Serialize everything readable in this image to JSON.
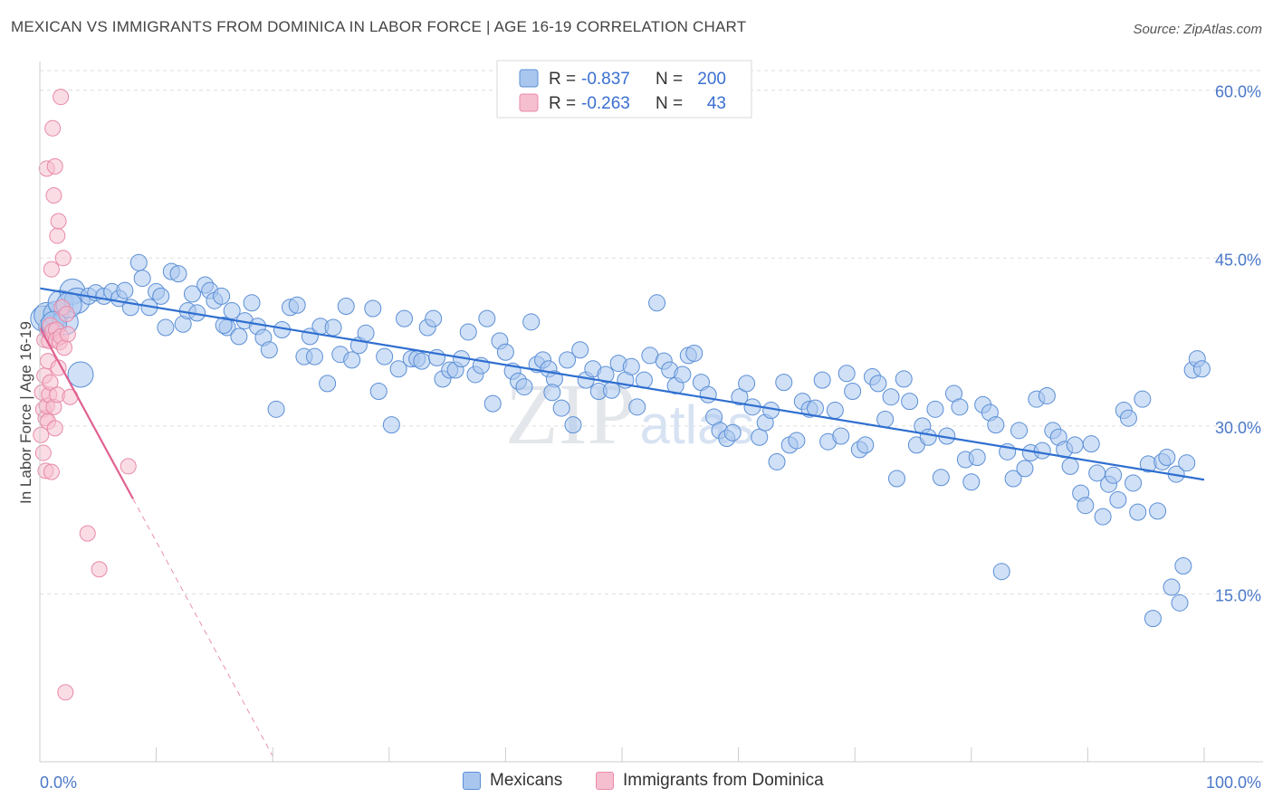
{
  "title": "MEXICAN VS IMMIGRANTS FROM DOMINICA IN LABOR FORCE | AGE 16-19 CORRELATION CHART",
  "source": "Source: ZipAtlas.com",
  "watermark": {
    "zip": "ZIP",
    "atlas": "atlas"
  },
  "colors": {
    "blue_fill": "#a9c6ee",
    "blue_stroke": "#5b8fd6",
    "blue_line": "#2f6fd0",
    "pink_fill": "#f6bfd0",
    "pink_stroke": "#e88aa8",
    "pink_line": "#e06090",
    "value_text": "#3a6fd0"
  },
  "legend": {
    "rows": [
      {
        "r_label": "R =",
        "r_value": "-0.837",
        "n_label": "N =",
        "n_value": "200"
      },
      {
        "r_label": "R =",
        "r_value": "-0.263",
        "n_label": "N =",
        "n_value": "43"
      }
    ]
  },
  "bottom_legend": {
    "series1": "Mexicans",
    "series2": "Immigrants from Dominica"
  },
  "chart_data": {
    "type": "scatter",
    "ylabel": "In Labor Force | Age 16-19",
    "xlim": [
      0,
      100
    ],
    "ylim": [
      0,
      62
    ],
    "x_tick_labels": [
      "0.0%",
      "100.0%"
    ],
    "y_ticks": [
      15,
      30,
      45,
      60
    ],
    "y_tick_labels": [
      "15.0%",
      "30.0%",
      "45.0%",
      "60.0%"
    ],
    "grid": true,
    "series": [
      {
        "name": "Mexicans",
        "trend": {
          "x": [
            0,
            100
          ],
          "y": [
            42.3,
            25.2
          ]
        },
        "points": [
          [
            0.3,
            39.6
          ],
          [
            0.6,
            39.9
          ],
          [
            1.0,
            38.8
          ],
          [
            1.4,
            40.0
          ],
          [
            1.8,
            41.0
          ],
          [
            2.2,
            39.3
          ],
          [
            2.8,
            42.0
          ],
          [
            3.2,
            41.2
          ],
          [
            3.5,
            34.6
          ],
          [
            4.2,
            41.6
          ],
          [
            4.8,
            41.9
          ],
          [
            5.5,
            41.6
          ],
          [
            6.2,
            42.0
          ],
          [
            6.8,
            41.4
          ],
          [
            7.3,
            42.1
          ],
          [
            7.8,
            40.6
          ],
          [
            8.5,
            44.6
          ],
          [
            8.8,
            43.2
          ],
          [
            9.4,
            40.6
          ],
          [
            10.0,
            42.0
          ],
          [
            10.4,
            41.6
          ],
          [
            10.8,
            38.8
          ],
          [
            11.3,
            43.8
          ],
          [
            11.9,
            43.6
          ],
          [
            12.3,
            39.1
          ],
          [
            12.7,
            40.3
          ],
          [
            13.1,
            41.8
          ],
          [
            13.5,
            40.1
          ],
          [
            14.2,
            42.6
          ],
          [
            14.6,
            42.1
          ],
          [
            15.0,
            41.2
          ],
          [
            15.6,
            41.6
          ],
          [
            16.1,
            38.8
          ],
          [
            16.5,
            40.3
          ],
          [
            17.1,
            38.0
          ],
          [
            17.6,
            39.4
          ],
          [
            18.2,
            41.0
          ],
          [
            18.7,
            38.9
          ],
          [
            19.2,
            37.9
          ],
          [
            19.7,
            36.8
          ],
          [
            20.3,
            31.5
          ],
          [
            20.8,
            38.6
          ],
          [
            21.5,
            40.6
          ],
          [
            22.1,
            40.8
          ],
          [
            22.7,
            36.2
          ],
          [
            23.2,
            38.0
          ],
          [
            23.6,
            36.2
          ],
          [
            24.1,
            38.9
          ],
          [
            24.7,
            33.8
          ],
          [
            25.2,
            38.8
          ],
          [
            25.8,
            36.4
          ],
          [
            26.3,
            40.7
          ],
          [
            26.8,
            35.9
          ],
          [
            27.4,
            37.2
          ],
          [
            28.0,
            38.3
          ],
          [
            28.6,
            40.5
          ],
          [
            29.1,
            33.1
          ],
          [
            29.6,
            36.2
          ],
          [
            30.2,
            30.1
          ],
          [
            30.8,
            35.1
          ],
          [
            31.3,
            39.6
          ],
          [
            31.9,
            36.0
          ],
          [
            32.4,
            36.0
          ],
          [
            32.8,
            35.8
          ],
          [
            33.3,
            38.8
          ],
          [
            33.8,
            39.6
          ],
          [
            34.1,
            36.1
          ],
          [
            34.6,
            34.2
          ],
          [
            35.2,
            35.0
          ],
          [
            35.7,
            35.0
          ],
          [
            36.2,
            36.0
          ],
          [
            36.8,
            38.4
          ],
          [
            37.4,
            34.6
          ],
          [
            37.9,
            35.4
          ],
          [
            38.4,
            39.6
          ],
          [
            38.9,
            32.0
          ],
          [
            39.5,
            37.6
          ],
          [
            40.0,
            36.6
          ],
          [
            40.6,
            34.9
          ],
          [
            41.1,
            34.0
          ],
          [
            41.6,
            33.5
          ],
          [
            42.2,
            39.3
          ],
          [
            42.7,
            35.5
          ],
          [
            43.2,
            35.9
          ],
          [
            43.7,
            35.1
          ],
          [
            44.2,
            34.2
          ],
          [
            44.8,
            31.6
          ],
          [
            45.3,
            35.9
          ],
          [
            45.8,
            30.1
          ],
          [
            46.4,
            36.8
          ],
          [
            46.9,
            34.1
          ],
          [
            47.5,
            35.1
          ],
          [
            48.0,
            33.1
          ],
          [
            48.6,
            34.6
          ],
          [
            49.1,
            33.2
          ],
          [
            49.7,
            35.6
          ],
          [
            50.3,
            34.1
          ],
          [
            50.8,
            35.3
          ],
          [
            51.3,
            31.7
          ],
          [
            51.9,
            34.1
          ],
          [
            52.4,
            36.3
          ],
          [
            53.0,
            41.0
          ],
          [
            53.6,
            35.8
          ],
          [
            54.1,
            35.0
          ],
          [
            54.6,
            33.6
          ],
          [
            55.2,
            34.6
          ],
          [
            55.7,
            36.3
          ],
          [
            56.2,
            36.5
          ],
          [
            56.8,
            33.9
          ],
          [
            57.4,
            32.8
          ],
          [
            57.9,
            30.8
          ],
          [
            58.4,
            29.6
          ],
          [
            59.0,
            28.9
          ],
          [
            59.5,
            29.4
          ],
          [
            60.1,
            32.6
          ],
          [
            60.7,
            33.8
          ],
          [
            61.2,
            31.7
          ],
          [
            61.8,
            29.0
          ],
          [
            62.3,
            30.3
          ],
          [
            62.8,
            31.4
          ],
          [
            63.3,
            26.8
          ],
          [
            63.9,
            33.9
          ],
          [
            64.4,
            28.3
          ],
          [
            65.0,
            28.7
          ],
          [
            65.5,
            32.2
          ],
          [
            66.1,
            31.5
          ],
          [
            66.6,
            31.6
          ],
          [
            67.2,
            34.1
          ],
          [
            67.7,
            28.6
          ],
          [
            68.3,
            31.4
          ],
          [
            68.8,
            29.1
          ],
          [
            69.3,
            34.7
          ],
          [
            69.8,
            33.1
          ],
          [
            70.4,
            27.9
          ],
          [
            70.9,
            28.3
          ],
          [
            71.5,
            34.4
          ],
          [
            72.0,
            33.8
          ],
          [
            72.6,
            30.6
          ],
          [
            73.1,
            32.6
          ],
          [
            73.6,
            25.3
          ],
          [
            74.2,
            34.2
          ],
          [
            74.7,
            32.2
          ],
          [
            75.3,
            28.3
          ],
          [
            75.8,
            30.0
          ],
          [
            76.3,
            29.0
          ],
          [
            76.9,
            31.5
          ],
          [
            77.4,
            25.4
          ],
          [
            77.9,
            29.1
          ],
          [
            78.5,
            32.9
          ],
          [
            79.0,
            31.7
          ],
          [
            79.5,
            27.0
          ],
          [
            80.0,
            25.0
          ],
          [
            80.5,
            27.2
          ],
          [
            81.0,
            31.9
          ],
          [
            81.6,
            31.2
          ],
          [
            82.1,
            30.1
          ],
          [
            82.6,
            17.0
          ],
          [
            83.1,
            27.7
          ],
          [
            83.6,
            25.3
          ],
          [
            84.1,
            29.6
          ],
          [
            84.6,
            26.2
          ],
          [
            85.1,
            27.6
          ],
          [
            85.6,
            32.4
          ],
          [
            86.1,
            27.8
          ],
          [
            86.5,
            32.7
          ],
          [
            87.0,
            29.6
          ],
          [
            87.5,
            29.0
          ],
          [
            88.0,
            27.9
          ],
          [
            88.5,
            26.4
          ],
          [
            88.9,
            28.3
          ],
          [
            89.4,
            24.0
          ],
          [
            89.8,
            22.9
          ],
          [
            90.3,
            28.4
          ],
          [
            90.8,
            25.8
          ],
          [
            91.3,
            21.9
          ],
          [
            91.8,
            24.8
          ],
          [
            92.2,
            25.6
          ],
          [
            92.6,
            23.4
          ],
          [
            93.1,
            31.4
          ],
          [
            93.5,
            30.7
          ],
          [
            93.9,
            24.9
          ],
          [
            94.3,
            22.3
          ],
          [
            94.7,
            32.4
          ],
          [
            95.2,
            26.6
          ],
          [
            95.6,
            12.8
          ],
          [
            96.0,
            22.4
          ],
          [
            96.4,
            26.8
          ],
          [
            96.8,
            27.2
          ],
          [
            97.2,
            15.6
          ],
          [
            97.6,
            25.7
          ],
          [
            97.9,
            14.2
          ],
          [
            98.2,
            17.5
          ],
          [
            98.5,
            26.7
          ],
          [
            99.0,
            35.0
          ],
          [
            99.4,
            36.0
          ],
          [
            99.8,
            35.1
          ],
          [
            1.2,
            39.1
          ],
          [
            2.5,
            40.8
          ],
          [
            15.8,
            39.0
          ],
          [
            44.0,
            33.0
          ]
        ]
      },
      {
        "name": "Immigrants from Dominica",
        "trend": {
          "x": [
            0,
            8.0
          ],
          "y": [
            38.8,
            23.5
          ]
        },
        "trend_extension": {
          "x": [
            8.0,
            20.0
          ],
          "y": [
            23.5,
            0.5
          ]
        },
        "points": [
          [
            0.1,
            29.2
          ],
          [
            0.2,
            33.0
          ],
          [
            0.3,
            31.5
          ],
          [
            0.3,
            27.6
          ],
          [
            0.4,
            34.5
          ],
          [
            0.4,
            37.7
          ],
          [
            0.5,
            30.7
          ],
          [
            0.5,
            26.0
          ],
          [
            0.6,
            53.0
          ],
          [
            0.6,
            31.8
          ],
          [
            0.7,
            30.4
          ],
          [
            0.7,
            35.8
          ],
          [
            0.8,
            37.6
          ],
          [
            0.8,
            32.8
          ],
          [
            0.9,
            39.0
          ],
          [
            0.9,
            33.9
          ],
          [
            1.0,
            44.0
          ],
          [
            1.0,
            25.9
          ],
          [
            1.1,
            56.6
          ],
          [
            1.1,
            38.5
          ],
          [
            1.2,
            50.6
          ],
          [
            1.2,
            31.7
          ],
          [
            1.3,
            53.2
          ],
          [
            1.3,
            29.8
          ],
          [
            1.4,
            38.6
          ],
          [
            1.4,
            37.7
          ],
          [
            1.5,
            47.0
          ],
          [
            1.5,
            32.8
          ],
          [
            1.6,
            48.3
          ],
          [
            1.6,
            35.2
          ],
          [
            1.7,
            37.5
          ],
          [
            1.8,
            59.4
          ],
          [
            1.8,
            38.0
          ],
          [
            1.9,
            40.6
          ],
          [
            2.0,
            45.0
          ],
          [
            2.1,
            37.0
          ],
          [
            2.2,
            6.2
          ],
          [
            2.3,
            40.0
          ],
          [
            2.4,
            38.2
          ],
          [
            2.6,
            32.6
          ],
          [
            4.1,
            20.4
          ],
          [
            5.1,
            17.2
          ],
          [
            7.6,
            26.4
          ]
        ]
      }
    ]
  }
}
